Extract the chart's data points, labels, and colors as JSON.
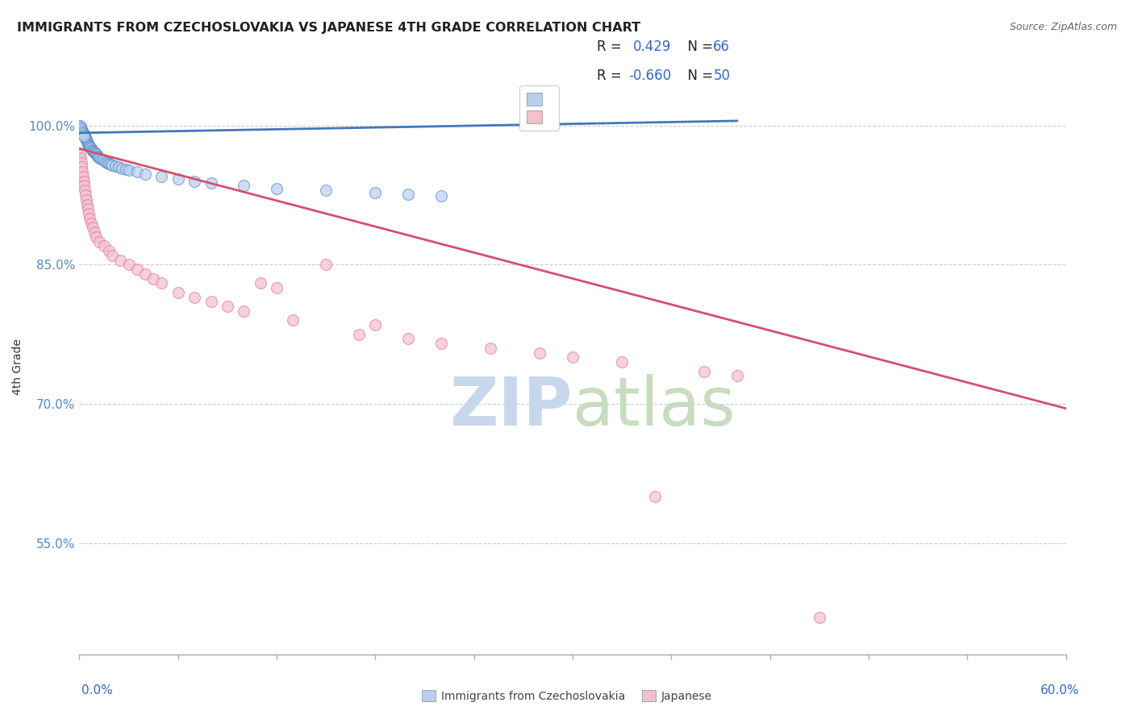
{
  "title": "IMMIGRANTS FROM CZECHOSLOVAKIA VS JAPANESE 4TH GRADE CORRELATION CHART",
  "source": "Source: ZipAtlas.com",
  "ylabel": "4th Grade",
  "xmin": 0.0,
  "xmax": 60.0,
  "ymin": 43.0,
  "ymax": 105.0,
  "yticks": [
    55.0,
    70.0,
    85.0,
    100.0
  ],
  "ytick_labels": [
    "55.0%",
    "70.0%",
    "85.0%",
    "100.0%"
  ],
  "blue_R": 0.429,
  "blue_N": 66,
  "pink_R": -0.66,
  "pink_N": 50,
  "blue_color": "#b8d0ee",
  "blue_edge": "#5588cc",
  "pink_color": "#f5c0ce",
  "pink_edge": "#e07898",
  "blue_line_color": "#4477bb",
  "pink_line_color": "#d45070",
  "watermark_zip_color": "#c8d8ec",
  "watermark_atlas_color": "#c8dcc0",
  "blue_line_x0": 0.0,
  "blue_line_x1": 40.0,
  "blue_line_y0": 99.2,
  "blue_line_y1": 100.5,
  "pink_line_x0": 0.0,
  "pink_line_x1": 60.0,
  "pink_line_y0": 97.5,
  "pink_line_y1": 69.5,
  "blue_scatter_x": [
    0.05,
    0.08,
    0.1,
    0.12,
    0.15,
    0.18,
    0.2,
    0.22,
    0.25,
    0.28,
    0.3,
    0.32,
    0.35,
    0.38,
    0.4,
    0.42,
    0.45,
    0.48,
    0.5,
    0.52,
    0.55,
    0.58,
    0.6,
    0.65,
    0.7,
    0.75,
    0.8,
    0.85,
    0.9,
    0.95,
    1.0,
    1.05,
    1.1,
    1.15,
    1.2,
    1.3,
    1.4,
    1.5,
    1.6,
    1.7,
    1.8,
    1.9,
    2.0,
    2.2,
    2.4,
    2.6,
    2.8,
    3.0,
    3.5,
    4.0,
    5.0,
    6.0,
    7.0,
    8.0,
    10.0,
    12.0,
    15.0,
    18.0,
    20.0,
    22.0,
    0.06,
    0.09,
    0.13,
    0.17,
    0.23,
    0.27
  ],
  "blue_scatter_y": [
    100.0,
    99.8,
    99.7,
    99.6,
    99.5,
    99.4,
    99.3,
    99.2,
    99.1,
    99.0,
    98.9,
    98.8,
    98.7,
    98.6,
    98.5,
    98.4,
    98.3,
    98.2,
    98.1,
    98.0,
    97.9,
    97.8,
    97.7,
    97.6,
    97.5,
    97.4,
    97.3,
    97.2,
    97.1,
    97.0,
    96.9,
    96.8,
    96.7,
    96.6,
    96.5,
    96.4,
    96.3,
    96.2,
    96.1,
    96.0,
    95.9,
    95.8,
    95.7,
    95.6,
    95.5,
    95.4,
    95.3,
    95.2,
    95.0,
    94.8,
    94.5,
    94.2,
    94.0,
    93.8,
    93.5,
    93.2,
    93.0,
    92.8,
    92.6,
    92.4,
    99.9,
    99.6,
    99.4,
    99.2,
    99.0,
    98.8
  ],
  "pink_scatter_x": [
    0.05,
    0.08,
    0.12,
    0.15,
    0.18,
    0.22,
    0.25,
    0.28,
    0.3,
    0.35,
    0.4,
    0.45,
    0.5,
    0.55,
    0.6,
    0.7,
    0.8,
    0.9,
    1.0,
    1.2,
    1.5,
    1.8,
    2.0,
    2.5,
    3.0,
    3.5,
    4.0,
    4.5,
    5.0,
    6.0,
    7.0,
    8.0,
    9.0,
    10.0,
    11.0,
    12.0,
    13.0,
    15.0,
    17.0,
    18.0,
    20.0,
    22.0,
    25.0,
    28.0,
    30.0,
    33.0,
    35.0,
    38.0,
    40.0,
    45.0
  ],
  "pink_scatter_y": [
    97.0,
    96.5,
    96.0,
    95.5,
    95.0,
    94.5,
    94.0,
    93.5,
    93.0,
    92.5,
    92.0,
    91.5,
    91.0,
    90.5,
    90.0,
    89.5,
    89.0,
    88.5,
    88.0,
    87.5,
    87.0,
    86.5,
    86.0,
    85.5,
    85.0,
    84.5,
    84.0,
    83.5,
    83.0,
    82.0,
    81.5,
    81.0,
    80.5,
    80.0,
    83.0,
    82.5,
    79.0,
    85.0,
    77.5,
    78.5,
    77.0,
    76.5,
    76.0,
    75.5,
    75.0,
    74.5,
    60.0,
    73.5,
    73.0,
    47.0
  ]
}
